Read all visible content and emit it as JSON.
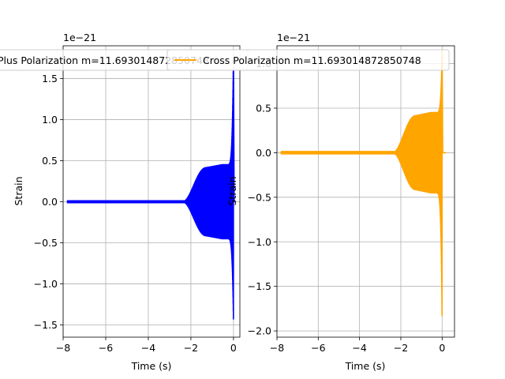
{
  "chart_data": [
    {
      "type": "line",
      "series": [
        {
          "name": "Plus Polarization m=11.693014872850748",
          "color": "#0000ff"
        }
      ],
      "x_range": [
        -8.0,
        0.3
      ],
      "y_range": [
        -1.65,
        1.9
      ],
      "x_ticks": [
        -8,
        -6,
        -4,
        -2,
        0
      ],
      "x_tick_labels": [
        "−8",
        "−6",
        "−4",
        "−2",
        "0"
      ],
      "y_ticks": [
        -1.5,
        -1.0,
        -0.5,
        0.0,
        0.5,
        1.0,
        1.5
      ],
      "y_tick_labels": [
        "−1.5",
        "−1.0",
        "−0.5",
        "0.0",
        "0.5",
        "1.0",
        "1.5"
      ],
      "y_offset_label": "1e−21",
      "xlabel": "Time (s)",
      "ylabel": "Strain",
      "grid": true,
      "legend_position": "top-center",
      "waveform": {
        "t_start": -7.8,
        "t_merger": 0.0,
        "t_end": 0.1,
        "plateau_amplitude": 0.45,
        "peak_max": 1.85,
        "peak_min": -1.48
      }
    },
    {
      "type": "line",
      "series": [
        {
          "name": "Cross Polarization m=11.693014872850748",
          "color": "#ffa500"
        }
      ],
      "x_range": [
        -8.0,
        0.6
      ],
      "y_range": [
        -2.07,
        1.2
      ],
      "x_ticks": [
        -8,
        -6,
        -4,
        -2,
        0
      ],
      "x_tick_labels": [
        "−8",
        "−6",
        "−4",
        "−2",
        "0"
      ],
      "y_ticks": [
        -2.0,
        -1.5,
        -1.0,
        -0.5,
        0.0,
        0.5,
        1.0
      ],
      "y_tick_labels": [
        "−2.0",
        "−1.5",
        "−1.0",
        "−0.5",
        "0.0",
        "0.5",
        "1.0"
      ],
      "y_offset_label": "1e−21",
      "xlabel": "Time (s)",
      "ylabel": "Strain",
      "grid": true,
      "legend_position": "top-center",
      "waveform": {
        "t_start": -7.8,
        "t_merger": 0.0,
        "t_end": 0.2,
        "plateau_amplitude": 0.45,
        "peak_max": 1.15,
        "peak_min": -1.9
      }
    }
  ]
}
